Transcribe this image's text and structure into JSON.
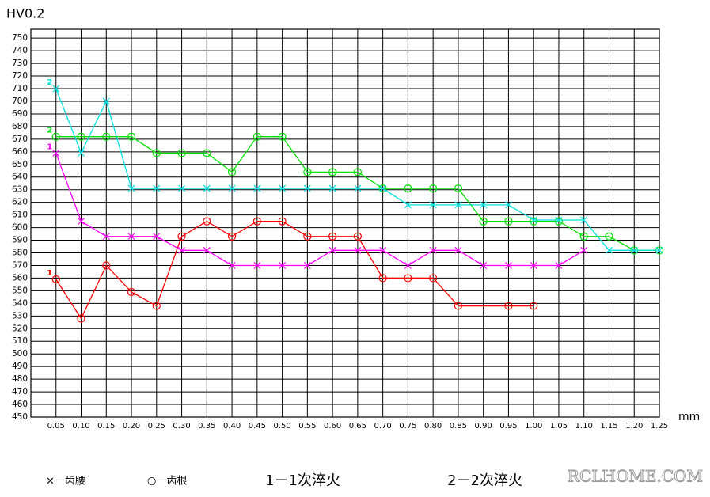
{
  "chart_data": {
    "type": "line",
    "y_label": "HV0.2",
    "x_label": "mm",
    "xlim": [
      0,
      1.25
    ],
    "ylim": [
      450,
      757
    ],
    "xticks": [
      {
        "value": 0.05,
        "label": "0.05"
      },
      {
        "value": 0.1,
        "label": "0.10"
      },
      {
        "value": 0.15,
        "label": "0.15"
      },
      {
        "value": 0.2,
        "label": "0.20"
      },
      {
        "value": 0.25,
        "label": "0.25"
      },
      {
        "value": 0.3,
        "label": "0.30"
      },
      {
        "value": 0.35,
        "label": "0.35"
      },
      {
        "value": 0.4,
        "label": "0.40"
      },
      {
        "value": 0.45,
        "label": "0.45"
      },
      {
        "value": 0.5,
        "label": "0.50"
      },
      {
        "value": 0.55,
        "label": "0.55"
      },
      {
        "value": 0.6,
        "label": "0.60"
      },
      {
        "value": 0.65,
        "label": "0.65"
      },
      {
        "value": 0.7,
        "label": "0.70"
      },
      {
        "value": 0.75,
        "label": "0.75"
      },
      {
        "value": 0.8,
        "label": "0.80"
      },
      {
        "value": 0.85,
        "label": "0.85"
      },
      {
        "value": 0.9,
        "label": "0.90"
      },
      {
        "value": 0.95,
        "label": "0.95"
      },
      {
        "value": 1.0,
        "label": "1.00"
      },
      {
        "value": 1.05,
        "label": "1.05"
      },
      {
        "value": 1.1,
        "label": "1.10"
      },
      {
        "value": 1.15,
        "label": "1.15"
      },
      {
        "value": 1.2,
        "label": "1.20"
      },
      {
        "value": 1.25,
        "label": "1.25"
      }
    ],
    "yticks": [
      450,
      460,
      470,
      480,
      490,
      500,
      510,
      520,
      530,
      540,
      550,
      560,
      570,
      580,
      590,
      600,
      610,
      620,
      630,
      640,
      650,
      660,
      670,
      680,
      690,
      700,
      710,
      720,
      730,
      740,
      750
    ],
    "grid": true,
    "series": [
      {
        "start_label": "1",
        "color": "#ff0000",
        "marker": "o",
        "x": [
          0.05,
          0.1,
          0.15,
          0.2,
          0.25,
          0.3,
          0.35,
          0.4,
          0.45,
          0.5,
          0.55,
          0.6,
          0.65,
          0.7,
          0.75,
          0.8,
          0.85,
          0.95,
          1.0
        ],
        "values": [
          559,
          528,
          570,
          549,
          538,
          593,
          605,
          593,
          605,
          605,
          593,
          593,
          593,
          560,
          560,
          560,
          538,
          538,
          538
        ]
      },
      {
        "start_label": "1",
        "color": "#ff00ff",
        "marker": "x",
        "x": [
          0.05,
          0.1,
          0.15,
          0.2,
          0.25,
          0.3,
          0.35,
          0.4,
          0.45,
          0.5,
          0.55,
          0.6,
          0.65,
          0.7,
          0.75,
          0.8,
          0.85,
          0.9,
          0.95,
          1.0,
          1.05,
          1.1
        ],
        "values": [
          659,
          605,
          593,
          593,
          593,
          582,
          582,
          570,
          570,
          570,
          570,
          582,
          582,
          582,
          570,
          582,
          582,
          570,
          570,
          570,
          570,
          582
        ]
      },
      {
        "start_label": "2",
        "color": "#00e000",
        "marker": "o",
        "x": [
          0.05,
          0.1,
          0.15,
          0.2,
          0.25,
          0.3,
          0.35,
          0.4,
          0.45,
          0.5,
          0.55,
          0.6,
          0.65,
          0.7,
          0.75,
          0.8,
          0.85,
          0.9,
          0.95,
          1.0,
          1.05,
          1.1,
          1.15,
          1.2,
          1.25
        ],
        "values": [
          672,
          672,
          672,
          672,
          659,
          659,
          659,
          644,
          672,
          672,
          644,
          644,
          644,
          631,
          631,
          631,
          631,
          605,
          605,
          605,
          605,
          593,
          593,
          582,
          582
        ]
      },
      {
        "start_label": "2",
        "color": "#00e0e0",
        "marker": "x",
        "x": [
          0.05,
          0.1,
          0.15,
          0.2,
          0.25,
          0.3,
          0.35,
          0.4,
          0.45,
          0.5,
          0.55,
          0.6,
          0.65,
          0.7,
          0.75,
          0.8,
          0.85,
          0.9,
          0.95,
          1.0,
          1.05,
          1.1,
          1.15,
          1.2,
          1.25
        ],
        "values": [
          710,
          659,
          700,
          631,
          631,
          631,
          631,
          631,
          631,
          631,
          631,
          631,
          631,
          631,
          618,
          618,
          618,
          618,
          618,
          606,
          606,
          606,
          582,
          582,
          582
        ]
      }
    ],
    "legend": [
      "×一齿腰",
      "○一齿根",
      "1－1次淬火",
      "2－2次淬火"
    ],
    "watermark": "RCLHOME.COM"
  }
}
